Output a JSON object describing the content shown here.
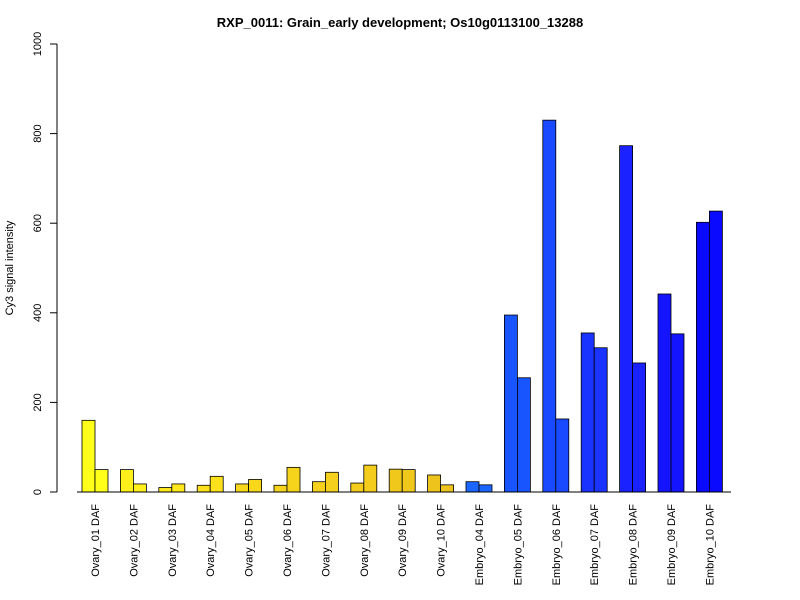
{
  "chart_data": {
    "type": "bar",
    "title": "RXP_0011: Grain_early development; Os10g0113100_13288",
    "ylabel": "Cy3 signal intensity",
    "xlabel": "",
    "ylim": [
      0,
      1000
    ],
    "yticks": [
      0,
      200,
      400,
      600,
      800,
      1000
    ],
    "grid": false,
    "categories": [
      "Ovary_01 DAF",
      "Ovary_02 DAF",
      "Ovary_03 DAF",
      "Ovary_04 DAF",
      "Ovary_05 DAF",
      "Ovary_06 DAF",
      "Ovary_07 DAF",
      "Ovary_08 DAF",
      "Ovary_09 DAF",
      "Ovary_10 DAF",
      "Embryo_04 DAF",
      "Embryo_05 DAF",
      "Embryo_06 DAF",
      "Embryo_07 DAF",
      "Embryo_08 DAF",
      "Embryo_09 DAF",
      "Embryo_10 DAF"
    ],
    "colors": [
      "#ffff1a",
      "#fff01c",
      "#ffe81c",
      "#fce01c",
      "#f9d81c",
      "#f7d41c",
      "#f5d01c",
      "#f3cc1c",
      "#f0c81c",
      "#eec41c",
      "#1a66ff",
      "#1955ff",
      "#1a4aff",
      "#1a33ff",
      "#1a22ff",
      "#1414ff",
      "#0a0aff"
    ],
    "series": [
      {
        "values": [
          160,
          50,
          10,
          15,
          18,
          15,
          23,
          20,
          51,
          38,
          23,
          395,
          830,
          355,
          773,
          442,
          602
        ]
      },
      {
        "values": [
          50,
          18,
          18,
          35,
          28,
          55,
          44,
          60,
          50,
          16,
          16,
          255,
          163,
          322,
          288,
          353,
          627
        ]
      }
    ]
  }
}
